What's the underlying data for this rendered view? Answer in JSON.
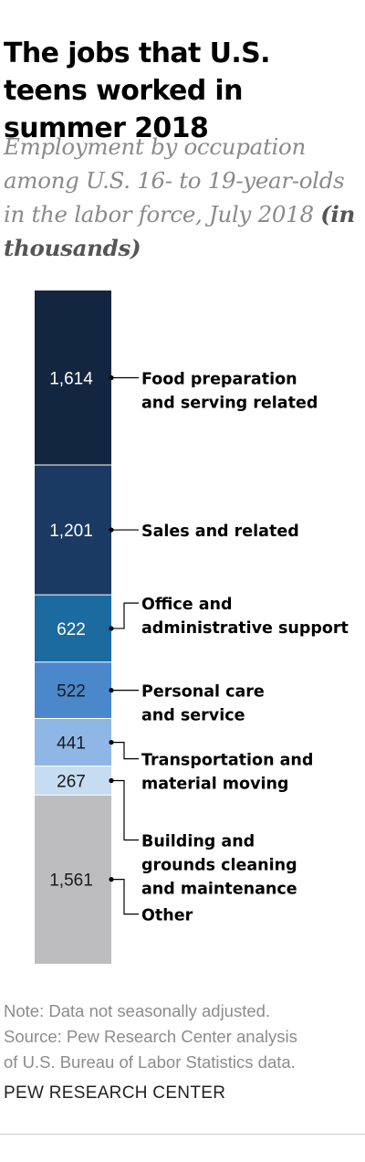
{
  "title": "The jobs that U.S. teens worked in summer 2018",
  "subtitle": "Employment by occupation among U.S. 16- to 19-year-olds in the labor force, July 2018",
  "subtitle_units": "(in thousands)",
  "chart_data": {
    "type": "bar",
    "stacked": true,
    "orientation": "vertical",
    "series": [
      {
        "name": "Food preparation and serving related",
        "value": 1614,
        "value_label": "1,614",
        "color": "#132640",
        "label_color": "#ffffff"
      },
      {
        "name": "Sales and related",
        "value": 1201,
        "value_label": "1,201",
        "color": "#1b3a63",
        "label_color": "#ffffff"
      },
      {
        "name": "Office and administrative support",
        "value": 622,
        "value_label": "622",
        "color": "#1b6aa0",
        "label_color": "#ffffff"
      },
      {
        "name": "Personal care and service",
        "value": 522,
        "value_label": "522",
        "color": "#4a88cb",
        "label_color": "#1a1a1a"
      },
      {
        "name": "Transportation and material moving",
        "value": 441,
        "value_label": "441",
        "color": "#8fb7e6",
        "label_color": "#1a1a1a"
      },
      {
        "name": "Building and grounds cleaning and maintenance",
        "value": 267,
        "value_label": "267",
        "color": "#c6dcf1",
        "label_color": "#1a1a1a"
      },
      {
        "name": "Other",
        "value": 1561,
        "value_label": "1,561",
        "color": "#bdbdbf",
        "label_color": "#1a1a1a"
      }
    ],
    "category_labels": [
      [
        "Food preparation",
        "and serving related"
      ],
      [
        "Sales and related"
      ],
      [
        "Office and",
        "administrative support"
      ],
      [
        "Personal care",
        "and service"
      ],
      [
        "Transportation and",
        "material moving"
      ],
      [
        "Building and",
        "grounds cleaning",
        "and maintenance"
      ],
      [
        "Other"
      ]
    ],
    "legend": "direct labels to the right of bar",
    "grid": false
  },
  "footer": {
    "note": "Note: Data not seasonally adjusted.",
    "source_line1": "Source: Pew Research Center analysis",
    "source_line2": "of U.S. Bureau of Labor Statistics data."
  },
  "brand": "PEW RESEARCH CENTER"
}
